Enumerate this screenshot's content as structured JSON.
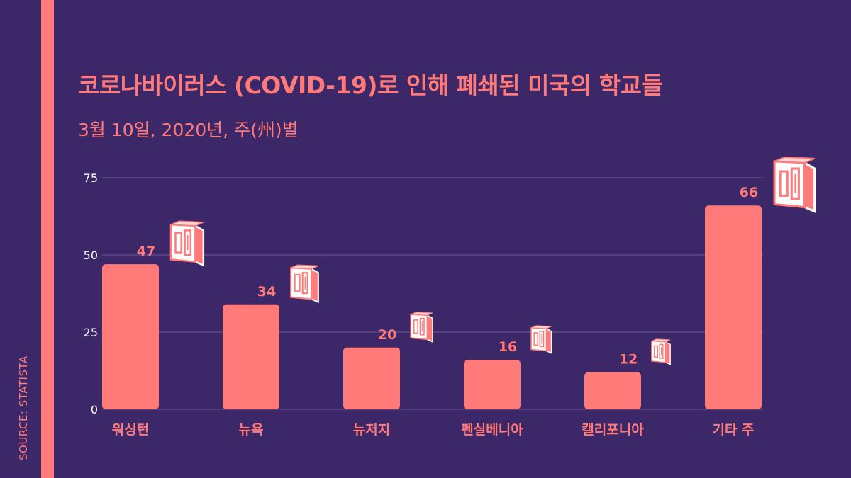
{
  "title": "코로나바이러스 (COVID-19)로 인해 폐쇄된 미국의 학교들",
  "subtitle": "3월 10일, 2020년, 주(州)별",
  "source": "SOURCE: STATISTA",
  "colors": {
    "background": "#3c2769",
    "accent": "#ff7a78",
    "grid": "#6a5a92",
    "tick": "#ffffff"
  },
  "icon": "school-building-icon",
  "chart_data": {
    "type": "bar",
    "title": "코로나바이러스 (COVID-19)로 인해 폐쇄된 미국의 학교들",
    "subtitle": "3월 10일, 2020년, 주(州)별",
    "categories": [
      "워싱턴",
      "뉴욕",
      "뉴저지",
      "펜실베니아",
      "캘리포니아",
      "기타 주"
    ],
    "values": [
      47,
      34,
      20,
      16,
      12,
      66
    ],
    "ylim": [
      0,
      75
    ],
    "yticks": [
      0,
      25,
      50,
      75
    ],
    "xlabel": "",
    "ylabel": "",
    "grid": true
  }
}
